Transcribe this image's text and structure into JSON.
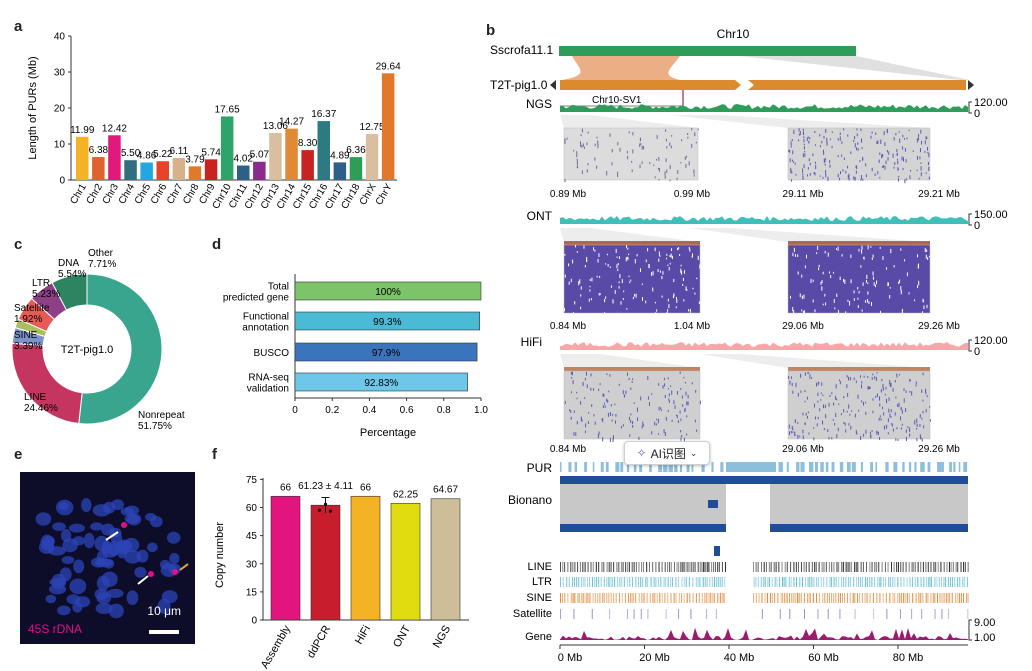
{
  "panels": {
    "a": "a",
    "b": "b",
    "c": "c",
    "d": "d",
    "e": "e",
    "f": "f"
  },
  "colors": {
    "teal": "#3aa58e",
    "magenta": "#c8106e",
    "orange": "#dc8a2e",
    "green_track": "#2e9d5a",
    "ont": "#3fbfba",
    "hifi": "#f4a8a8",
    "bionano_blue": "#1f4e96",
    "gene": "#9b1b6e",
    "pur": "#8cbfdc"
  },
  "chart_data": [
    {
      "type": "bar",
      "panel": "a",
      "ylabel": "Length of PURs (Mb)",
      "ylim": [
        0,
        40
      ],
      "yticks": [
        "0",
        "10",
        "20",
        "30",
        "40"
      ],
      "categories": [
        "Chr1",
        "Chr2",
        "Chr3",
        "Chr4",
        "Chr5",
        "Chr6",
        "Chr7",
        "Chr8",
        "Chr9",
        "Chr10",
        "Chr11",
        "Chr12",
        "Chr13",
        "Chr14",
        "Chr15",
        "Chr16",
        "Chr17",
        "Chr18",
        "ChrX",
        "ChrY"
      ],
      "values": [
        11.99,
        6.38,
        12.42,
        5.5,
        4.86,
        5.22,
        6.11,
        3.79,
        5.74,
        17.65,
        4.02,
        5.07,
        13.06,
        14.27,
        8.3,
        16.37,
        4.89,
        6.36,
        12.75,
        29.64
      ],
      "labels": [
        "11.99",
        "6.38",
        "12.42",
        "5.50",
        "4.86",
        "5.22",
        "6.11",
        "3.79",
        "5.74",
        "17.65",
        "4.02",
        "5.07",
        "13.06",
        "14.27",
        "8.30",
        "16.37",
        "4.89",
        "6.36",
        "12.75",
        "29.64"
      ],
      "colors": [
        "#f4b324",
        "#e0632d",
        "#e2197d",
        "#2f6f80",
        "#24a7e0",
        "#e8432a",
        "#d9b08c",
        "#e07a2a",
        "#c8231f",
        "#2ea36a",
        "#2d5f88",
        "#8b2c8c",
        "#d9bea0",
        "#e08a35",
        "#c8231f",
        "#2d7a82",
        "#2d5f88",
        "#2e9d55",
        "#d9bea0",
        "#e07a2a"
      ]
    },
    {
      "type": "pie",
      "panel": "c",
      "center_label": "T2T-pig1.0",
      "slices": [
        {
          "name": "Nonrepeat",
          "value": 51.75,
          "label": "51.75%",
          "color": "#3aa58e"
        },
        {
          "name": "LINE",
          "value": 24.46,
          "label": "24.46%",
          "color": "#c4355f"
        },
        {
          "name": "SINE",
          "value": 3.39,
          "label": "3.39%",
          "color": "#7b93c8"
        },
        {
          "name": "Satellite",
          "value": 1.92,
          "label": "1.92%",
          "color": "#a9c05a"
        },
        {
          "name": "LTR",
          "value": 5.23,
          "label": "5.23%",
          "color": "#e85a55"
        },
        {
          "name": "DNA",
          "value": 5.54,
          "label": "5.54%",
          "color": "#8e3f86"
        },
        {
          "name": "Other",
          "value": 7.71,
          "label": "7.71%",
          "color": "#2e8460"
        }
      ]
    },
    {
      "type": "bar",
      "panel": "d",
      "orientation": "horizontal",
      "xlabel": "Percentage",
      "xlim": [
        0,
        1.0
      ],
      "xticks": [
        "0",
        "0.2",
        "0.4",
        "0.6",
        "0.8",
        "1.0"
      ],
      "categories": [
        [
          "Total",
          "predicted gene"
        ],
        [
          "Functional",
          "annotation"
        ],
        [
          "BUSCO"
        ],
        [
          "RNA-seq",
          "validation"
        ]
      ],
      "values": [
        1.0,
        0.993,
        0.979,
        0.9283
      ],
      "labels": [
        "100%",
        "99.3%",
        "97.9%",
        "92.83%"
      ],
      "colors": [
        "#7cc36a",
        "#4bbad4",
        "#3a74bc",
        "#6ec6e8"
      ]
    },
    {
      "type": "bar",
      "panel": "f",
      "ylabel": "Copy number",
      "ylim": [
        0,
        80
      ],
      "yticks": [
        "0",
        "15",
        "30",
        "45",
        "60",
        "75"
      ],
      "categories": [
        "Assembly",
        "ddPCR",
        "HiFi",
        "ONT",
        "NGS"
      ],
      "values": [
        66,
        61.23,
        66,
        62.25,
        64.67
      ],
      "labels": [
        "66",
        "61.23 ± 4.11",
        "66",
        "62.25",
        "64.67"
      ],
      "error": [
        0,
        4.11,
        0,
        0,
        0
      ],
      "colors": [
        "#e2147d",
        "#c81d2d",
        "#f4b324",
        "#e0dc10",
        "#cdbd98"
      ]
    }
  ],
  "b": {
    "title": "Chr10",
    "ref_label": "Sscrofa11.1",
    "t2t_label": "T2T-pig1.0",
    "sv_label": "Chr10-SV1",
    "ngs": {
      "label": "NGS",
      "max": "120.00",
      "min": "0",
      "ticks_left": [
        "0.89 Mb",
        "0.99 Mb"
      ],
      "ticks_right": [
        "29.11 Mb",
        "29.21 Mb"
      ]
    },
    "ont": {
      "label": "ONT",
      "max": "150.00",
      "min": "0",
      "ticks_left": [
        "0.84 Mb",
        "1.04 Mb"
      ],
      "ticks_right": [
        "29.06 Mb",
        "29.26 Mb"
      ]
    },
    "hifi": {
      "label": "HiFi",
      "max": "120.00",
      "min": "0",
      "ticks_left": [
        "0.84 Mb",
        "1.04 Mb"
      ],
      "ticks_right": [
        "29.06 Mb",
        "29.26 Mb"
      ]
    },
    "tracks": {
      "pur": "PUR",
      "bionano": "Bionano",
      "line": "LINE",
      "ltr": "LTR",
      "sine": "SINE",
      "satellite": "Satellite",
      "gene": "Gene",
      "gene_max": "9.00",
      "gene_min": "1.00"
    },
    "xaxis": [
      "0 Mb",
      "20 Mb",
      "40 Mb",
      "60 Mb",
      "80 Mb"
    ],
    "badge": "AI识图"
  },
  "e": {
    "label": "45S rDNA",
    "scale": "10 μm"
  }
}
